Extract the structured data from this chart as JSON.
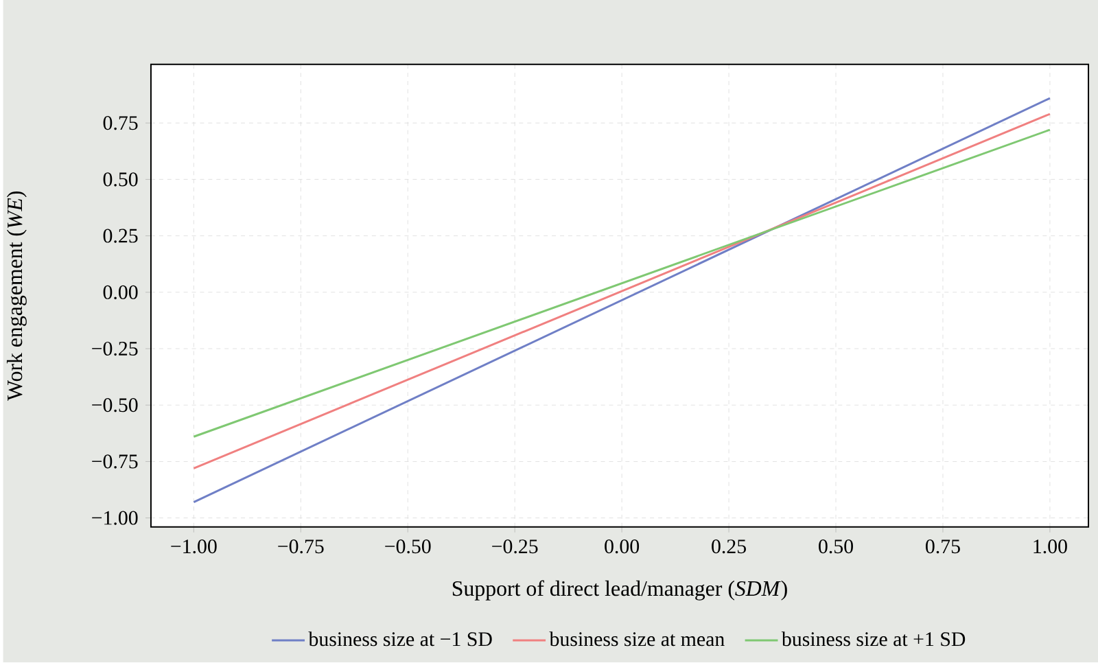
{
  "chart_data": {
    "type": "line",
    "xlabel": "Support of direct lead/manager (*SDM*)",
    "ylabel": "Work engagement (*WE*)",
    "x": [
      -1,
      1
    ],
    "series": [
      {
        "name": "business size at −1 SD",
        "color": "#6f7fc6",
        "values": [
          -0.93,
          0.86
        ]
      },
      {
        "name": "business size at mean",
        "color": "#f08080",
        "values": [
          -0.78,
          0.79
        ]
      },
      {
        "name": "business size at +1 SD",
        "color": "#7fc872",
        "values": [
          -0.64,
          0.72
        ]
      }
    ],
    "xlim": [
      -1.1,
      1.09
    ],
    "ylim": [
      -1.04,
      1.01
    ],
    "xticks": [
      {
        "value": -1,
        "label": "−1.00"
      },
      {
        "value": -0.75,
        "label": "−0.75"
      },
      {
        "value": -0.5,
        "label": "−0.50"
      },
      {
        "value": -0.25,
        "label": "−0.25"
      },
      {
        "value": 0,
        "label": "0.00"
      },
      {
        "value": 0.25,
        "label": "0.25"
      },
      {
        "value": 0.5,
        "label": "0.50"
      },
      {
        "value": 0.75,
        "label": "0.75"
      },
      {
        "value": 1,
        "label": "1.00"
      }
    ],
    "yticks": [
      {
        "value": -1,
        "label": "−1.00"
      },
      {
        "value": -0.75,
        "label": "−0.75"
      },
      {
        "value": -0.5,
        "label": "−0.50"
      },
      {
        "value": -0.25,
        "label": "−0.25"
      },
      {
        "value": 0,
        "label": "0.00"
      },
      {
        "value": 0.25,
        "label": "0.25"
      },
      {
        "value": 0.5,
        "label": "0.50"
      },
      {
        "value": 0.75,
        "label": "0.75"
      }
    ],
    "grid": true,
    "legend": "bottom",
    "marker": "none",
    "line_style": "solid"
  }
}
